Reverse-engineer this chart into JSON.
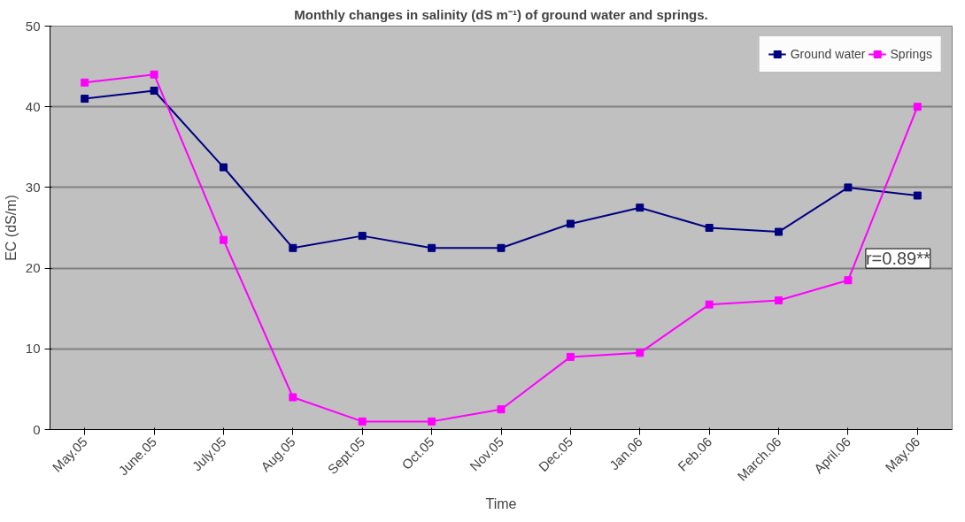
{
  "chart_data": {
    "type": "line",
    "title": "Monthly changes in salinity (dS m⁻¹) of ground water and springs.",
    "xlabel": "Time",
    "ylabel": "EC (dS/m)",
    "categories": [
      "May.05",
      "June.05",
      "July.05",
      "Aug.05",
      "Sept.05",
      "Oct.05",
      "Nov.05",
      "Dec.05",
      "Jan.06",
      "Feb.06",
      "March.06",
      "April.06",
      "May.06"
    ],
    "series": [
      {
        "name": "Ground water",
        "color": "#000080",
        "values": [
          41,
          42,
          32.5,
          22.5,
          24,
          22.5,
          22.5,
          25.5,
          27.5,
          25,
          24.5,
          30,
          29
        ]
      },
      {
        "name": "Springs",
        "color": "#ff00ff",
        "values": [
          43,
          44,
          23.5,
          4,
          1,
          1,
          2.5,
          9,
          9.5,
          15.5,
          16,
          18.5,
          40
        ]
      }
    ],
    "ylim": [
      0,
      50
    ],
    "yticks": [
      0,
      10,
      20,
      30,
      40,
      50
    ],
    "grid": "y",
    "legend": "top right",
    "marker": "square",
    "annotations": [
      {
        "text": "r=0.89**",
        "x": "April.06",
        "y": 20
      }
    ]
  }
}
